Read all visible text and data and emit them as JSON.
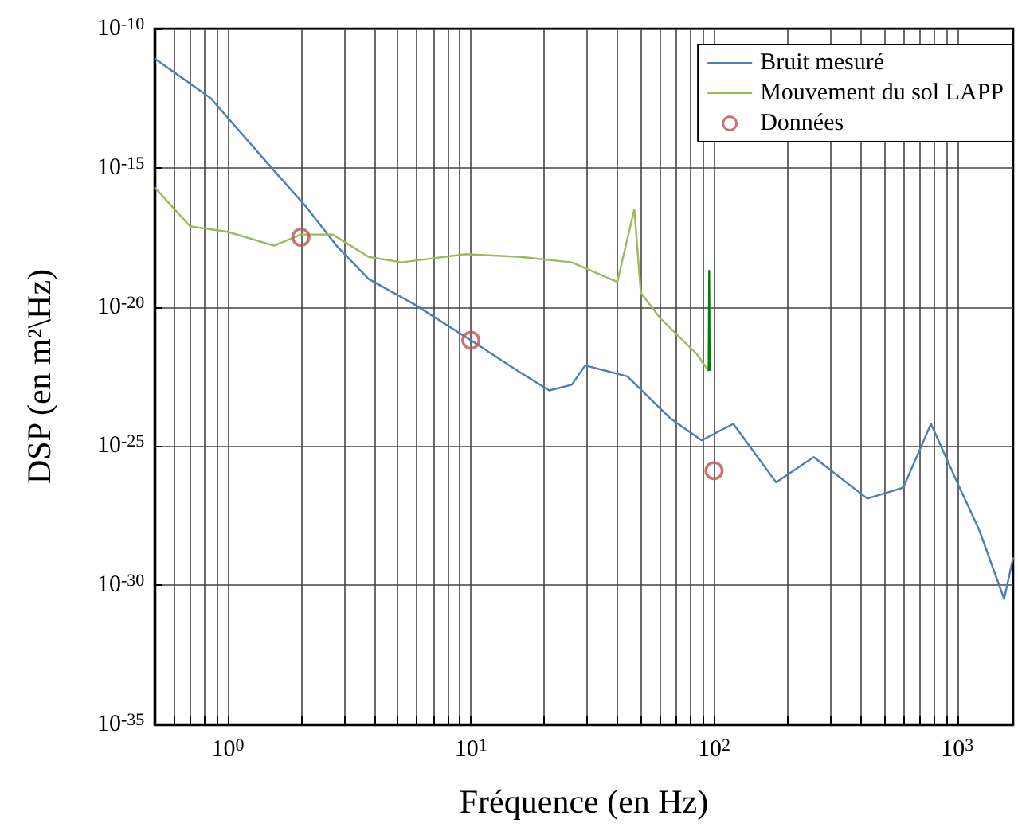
{
  "chart_data": {
    "type": "line",
    "xlabel": "Fréquence (en Hz)",
    "ylabel": "DSP (en m²\\Hz)",
    "log": "xy",
    "grid": true,
    "legend": "top right",
    "xlim": [
      0.5,
      1700
    ],
    "ylim": [
      1e-35,
      1e-10
    ],
    "xticks": [
      {
        "value": 0.5,
        "label": null
      },
      {
        "value": 0.6,
        "label": null
      },
      {
        "value": 0.7,
        "label": null
      },
      {
        "value": 0.8,
        "label": null
      },
      {
        "value": 0.9,
        "label": null
      },
      {
        "value": 1,
        "label": "10$^{0}$"
      },
      {
        "value": 2,
        "label": null
      },
      {
        "value": 3,
        "label": null
      },
      {
        "value": 4,
        "label": null
      },
      {
        "value": 5,
        "label": null
      },
      {
        "value": 6,
        "label": null
      },
      {
        "value": 7,
        "label": null
      },
      {
        "value": 8,
        "label": null
      },
      {
        "value": 9,
        "label": null
      },
      {
        "value": 10,
        "label": "10$^{1}$"
      },
      {
        "value": 20,
        "label": null
      },
      {
        "value": 30,
        "label": null
      },
      {
        "value": 40,
        "label": null
      },
      {
        "value": 50,
        "label": null
      },
      {
        "value": 60,
        "label": null
      },
      {
        "value": 70,
        "label": null
      },
      {
        "value": 80,
        "label": null
      },
      {
        "value": 90,
        "label": null
      },
      {
        "value": 100,
        "label": "10$^{2}$"
      },
      {
        "value": 200,
        "label": null
      },
      {
        "value": 300,
        "label": null
      },
      {
        "value": 400,
        "label": null
      },
      {
        "value": 500,
        "label": null
      },
      {
        "value": 600,
        "label": null
      },
      {
        "value": 700,
        "label": null
      },
      {
        "value": 800,
        "label": null
      },
      {
        "value": 900,
        "label": null
      },
      {
        "value": 1000,
        "label": "10$^{3}$"
      }
    ],
    "yticks": [
      {
        "value": 1e-35,
        "label": "10$^{-35}$"
      },
      {
        "value": 1e-30,
        "label": "10$^{-30}$"
      },
      {
        "value": 1e-25,
        "label": "10$^{-25}$"
      },
      {
        "value": 1e-20,
        "label": "10$^{-20}$"
      },
      {
        "value": 1e-15,
        "label": "10$^{-15}$"
      },
      {
        "value": 1e-10,
        "label": "10$^{-10}$"
      }
    ],
    "series": [
      {
        "name": "Bruit mesuré",
        "color": "#4a7ebb",
        "marker": "none",
        "x": [
          0.5,
          0.85,
          1.55,
          2.1,
          2.8,
          3.8,
          5.8,
          10,
          15.6,
          21,
          26,
          29.5,
          44,
          66,
          89,
          120,
          180,
          257,
          427,
          600,
          780,
          1000,
          1230,
          1560,
          1700
        ],
        "values": [
          8.5e-12,
          3.2e-13,
          7.9e-16,
          4e-17,
          1.6e-18,
          1e-19,
          1.3e-20,
          6.3e-22,
          5e-23,
          1e-23,
          1.6e-23,
          7.9e-23,
          3.2e-23,
          1e-24,
          1.6e-25,
          6.3e-25,
          5e-27,
          4e-26,
          1.3e-27,
          3.2e-27,
          6.3e-25,
          5e-27,
          1e-28,
          3.2e-31,
          1e-29
        ]
      },
      {
        "name": "Mouvement du sol LAPP",
        "color": "#9bbb59",
        "marker": "none",
        "x": [
          0.5,
          0.7,
          1.0,
          1.55,
          2.0,
          2.7,
          3.8,
          5.2,
          9.5,
          16,
          26,
          40,
          47,
          50,
          60,
          85,
          95
        ],
        "values": [
          2e-16,
          7.9e-18,
          5e-18,
          1.6e-18,
          4e-18,
          4e-18,
          6.3e-19,
          4e-19,
          7.9e-19,
          6.3e-19,
          4e-19,
          7.9e-20,
          3.2e-17,
          3.2e-20,
          4e-21,
          2e-22,
          5e-23
        ]
      },
      {
        "color": "#008000",
        "marker": "none",
        "x": [
          95,
          95.5,
          96
        ],
        "values": [
          5e-23,
          2e-19,
          5e-23
        ]
      },
      {
        "name": "Données",
        "type": "scatter",
        "color": "#c0504d",
        "marker": "circle",
        "x": [
          2,
          10,
          100
        ],
        "values": [
          3.2e-18,
          6.3e-22,
          1.3e-26
        ]
      }
    ]
  }
}
